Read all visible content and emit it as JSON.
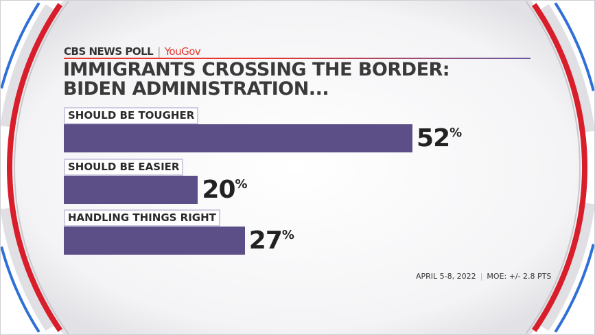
{
  "header": {
    "brand": "CBS NEWS POLL",
    "partner": "YouGov"
  },
  "title_lines": [
    "IMMIGRANTS CROSSING THE BORDER:",
    "BIDEN ADMINISTRATION..."
  ],
  "colors": {
    "bar": "#5c4f87",
    "accent_red": "#e8372e",
    "ring_blue": "#2f6fd6"
  },
  "chart_data": {
    "type": "bar",
    "orientation": "horizontal",
    "categories": [
      "SHOULD BE TOUGHER",
      "SHOULD BE EASIER",
      "HANDLING THINGS RIGHT"
    ],
    "values": [
      52,
      20,
      27
    ],
    "labels": [
      "52",
      "20",
      "27"
    ],
    "unit": "%",
    "xlim": [
      0,
      100
    ]
  },
  "footer": {
    "date": "APRIL 5-8, 2022",
    "moe": "MOE: +/- 2.8 PTS"
  }
}
